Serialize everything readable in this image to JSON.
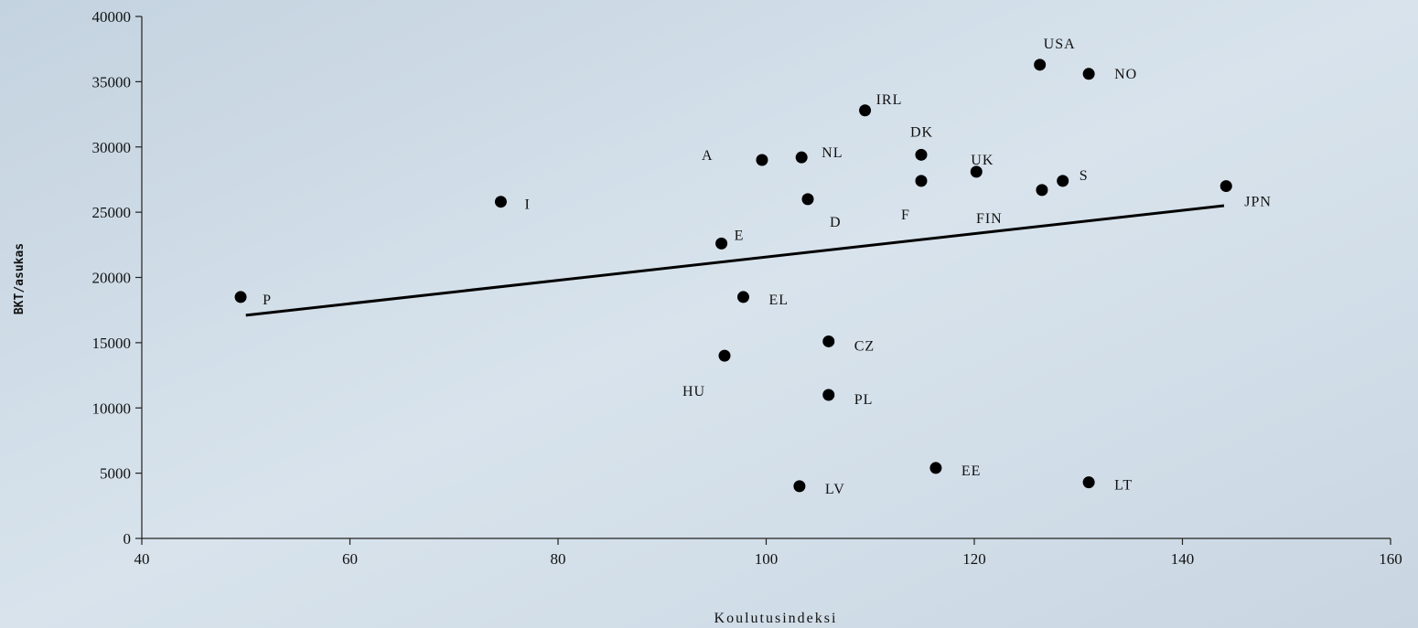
{
  "chart_data": {
    "type": "scatter",
    "title": "",
    "xlabel": "Koulutusindeksi",
    "ylabel": "BKT/asukas",
    "xlim": [
      40,
      160
    ],
    "ylim": [
      0,
      40000
    ],
    "xticks": [
      40,
      60,
      80,
      100,
      120,
      140,
      160
    ],
    "yticks": [
      0,
      5000,
      10000,
      15000,
      20000,
      25000,
      30000,
      35000,
      40000
    ],
    "grid": false,
    "legend": "none",
    "point_color": "#000000",
    "points": [
      {
        "label": "P",
        "x": 49.5,
        "y": 18500
      },
      {
        "label": "I",
        "x": 74.5,
        "y": 25800
      },
      {
        "label": "E",
        "x": 95.7,
        "y": 22600
      },
      {
        "label": "EL",
        "x": 97.8,
        "y": 18500
      },
      {
        "label": "HU",
        "x": 96.0,
        "y": 14000
      },
      {
        "label": "A",
        "x": 99.6,
        "y": 29000
      },
      {
        "label": "NL",
        "x": 103.4,
        "y": 29200
      },
      {
        "label": "D",
        "x": 104.0,
        "y": 26000
      },
      {
        "label": "CZ",
        "x": 106.0,
        "y": 15100
      },
      {
        "label": "PL",
        "x": 106.0,
        "y": 11000
      },
      {
        "label": "LV",
        "x": 103.2,
        "y": 4000
      },
      {
        "label": "IRL",
        "x": 109.5,
        "y": 32800
      },
      {
        "label": "DK",
        "x": 114.9,
        "y": 29400
      },
      {
        "label": "F",
        "x": 114.9,
        "y": 27400
      },
      {
        "label": "UK",
        "x": 120.2,
        "y": 28100
      },
      {
        "label": "FIN",
        "x": 126.5,
        "y": 26700
      },
      {
        "label": "S",
        "x": 128.5,
        "y": 27400
      },
      {
        "label": "USA",
        "x": 126.3,
        "y": 36300
      },
      {
        "label": "NO",
        "x": 131.0,
        "y": 35600
      },
      {
        "label": "EE",
        "x": 116.3,
        "y": 5400
      },
      {
        "label": "LT",
        "x": 131.0,
        "y": 4300
      },
      {
        "label": "JPN",
        "x": 144.2,
        "y": 27000
      }
    ],
    "trendline": {
      "type": "linear",
      "x": [
        50,
        144
      ],
      "y": [
        17100,
        25500
      ]
    }
  }
}
